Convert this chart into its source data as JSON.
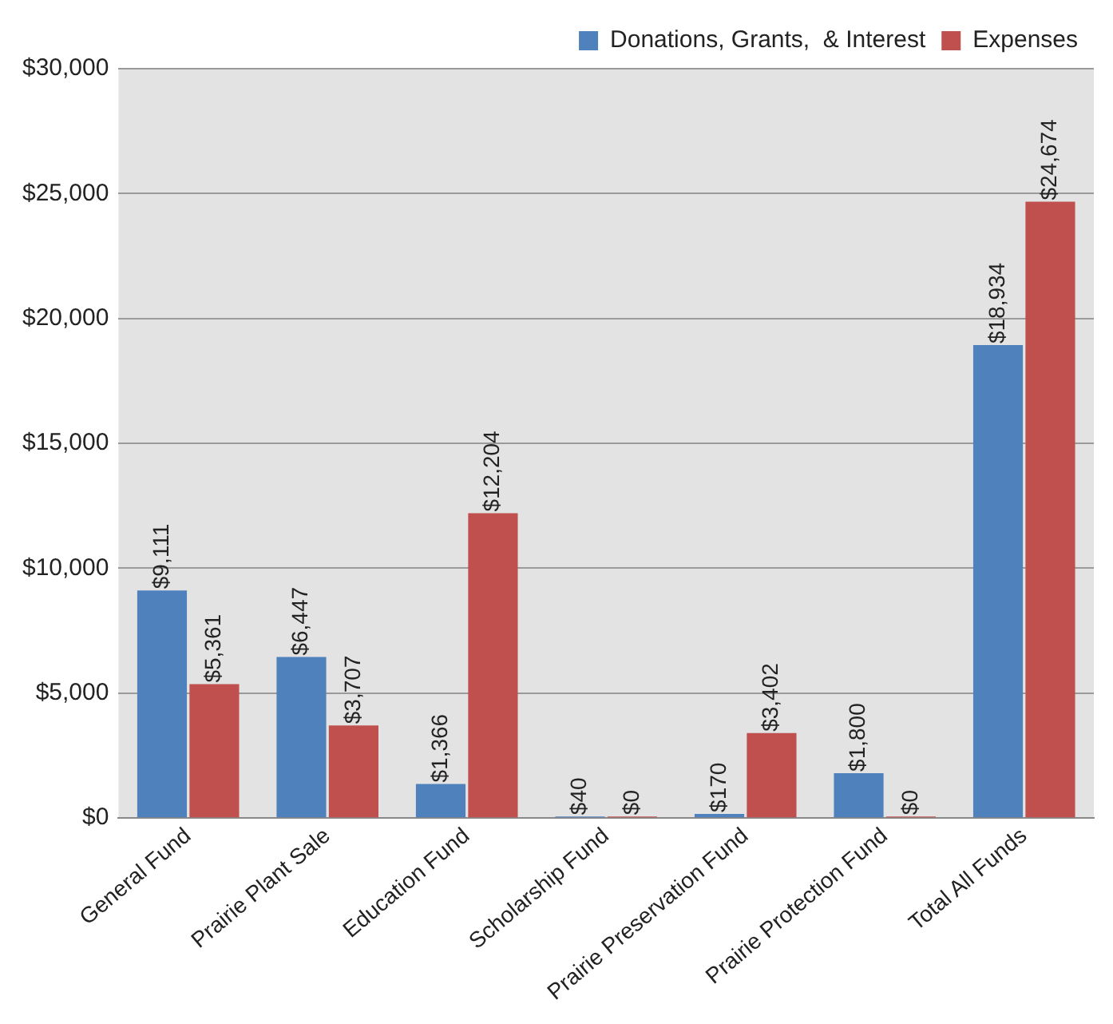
{
  "chart_data": {
    "type": "bar",
    "categories": [
      "General Fund",
      "Prairie Plant Sale",
      "Education Fund",
      "Scholarship Fund",
      "Prairie Preservation Fund",
      "Prairie Protection Fund",
      "Total All Funds"
    ],
    "series": [
      {
        "name": "Donations, Grants,  & Interest",
        "color": "#4f81bd",
        "values": [
          9111,
          6447,
          1366,
          40,
          170,
          1800,
          18934
        ],
        "value_labels": [
          "$9,111",
          "$6,447",
          "$1,366",
          "$40",
          "$170",
          "$1,800",
          "$18,934"
        ]
      },
      {
        "name": "Expenses",
        "color": "#c0504d",
        "values": [
          5361,
          3707,
          12204,
          0,
          3402,
          0,
          24674
        ],
        "value_labels": [
          "$5,361",
          "$3,707",
          "$12,204",
          "$0",
          "$3,402",
          "$0",
          "$24,674"
        ]
      }
    ],
    "ylim": [
      0,
      30000
    ],
    "yticks": [
      {
        "value": 0,
        "label": "$0"
      },
      {
        "value": 5000,
        "label": "$5,000"
      },
      {
        "value": 10000,
        "label": "$10,000"
      },
      {
        "value": 15000,
        "label": "$15,000"
      },
      {
        "value": 20000,
        "label": "$20,000"
      },
      {
        "value": 25000,
        "label": "$25,000"
      },
      {
        "value": 30000,
        "label": "$30,000"
      }
    ],
    "grid": "y",
    "legend": "top right"
  }
}
